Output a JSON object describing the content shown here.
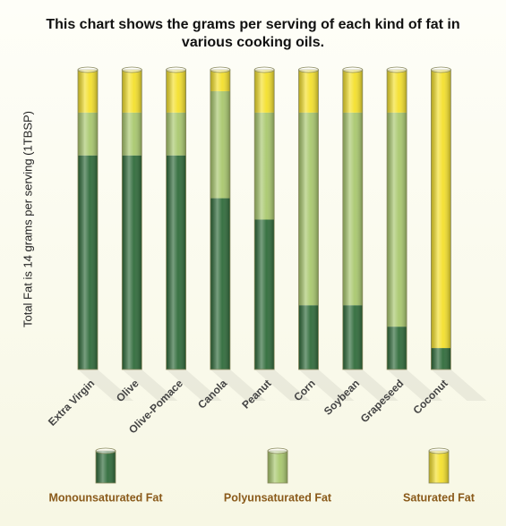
{
  "chart_data": {
    "type": "stacked-bar",
    "title": "This chart shows the grams per serving of each kind of fat in various cooking oils.",
    "y_label": "Total Fat is 14 grams per serving (1TBSP)",
    "categories": [
      "Extra Virgin",
      "Olive",
      "Olive-Pomace",
      "Canola",
      "Peanut",
      "Corn",
      "Soybean",
      "Grapeseed",
      "Coconut"
    ],
    "series": [
      {
        "name": "Monounsaturated Fat",
        "color": "#2f6b3a",
        "values": [
          10,
          10,
          10,
          8,
          7,
          3,
          3,
          2,
          1
        ]
      },
      {
        "name": "Polyunsaturated Fat",
        "color": "#a9c86e",
        "values": [
          2,
          2,
          2,
          5,
          5,
          9,
          9,
          10,
          0
        ]
      },
      {
        "name": "Saturated Fat",
        "color": "#f4e02c",
        "values": [
          2,
          2,
          2,
          1,
          2,
          2,
          2,
          2,
          13
        ]
      }
    ],
    "ylim": [
      0,
      14
    ],
    "legend": "bottom"
  }
}
